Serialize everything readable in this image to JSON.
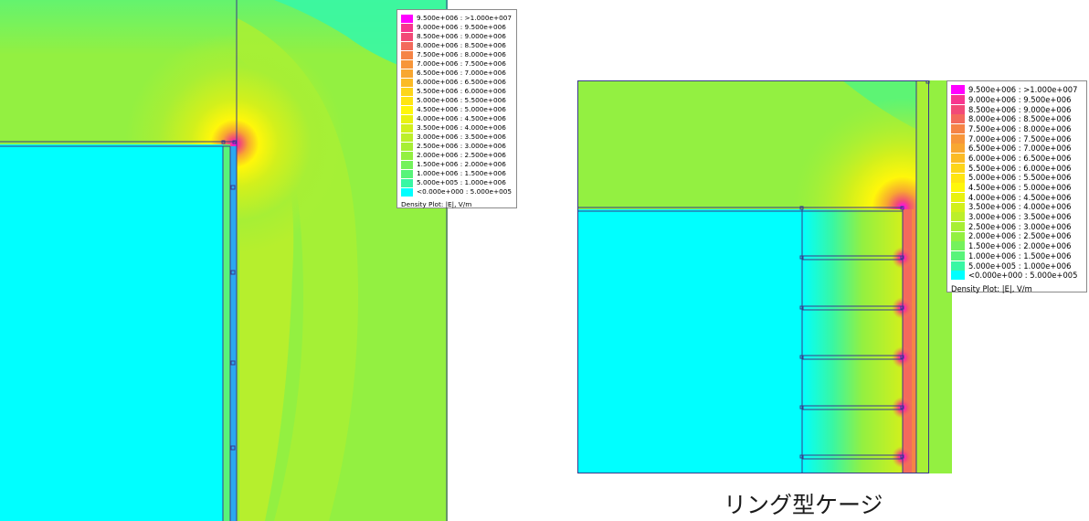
{
  "legend": {
    "entries": [
      {
        "label": "9.500e+006 : >1.000e+007",
        "color": "#ff00ff"
      },
      {
        "label": "9.000e+006 : 9.500e+006",
        "color": "#f7368f"
      },
      {
        "label": "8.500e+006 : 9.000e+006",
        "color": "#f24a77"
      },
      {
        "label": "8.000e+006 : 8.500e+006",
        "color": "#f36a5c"
      },
      {
        "label": "7.500e+006 : 8.000e+006",
        "color": "#f58446"
      },
      {
        "label": "7.000e+006 : 7.500e+006",
        "color": "#f7963a"
      },
      {
        "label": "6.500e+006 : 7.000e+006",
        "color": "#f8a731"
      },
      {
        "label": "6.000e+006 : 6.500e+006",
        "color": "#fbbb26"
      },
      {
        "label": "5.500e+006 : 6.000e+006",
        "color": "#fdd51a"
      },
      {
        "label": "5.000e+006 : 5.500e+006",
        "color": "#ffe512"
      },
      {
        "label": "4.500e+006 : 5.000e+006",
        "color": "#fff70a"
      },
      {
        "label": "4.000e+006 : 4.500e+006",
        "color": "#e9f210"
      },
      {
        "label": "3.500e+006 : 4.000e+006",
        "color": "#d2f01c"
      },
      {
        "label": "3.000e+006 : 3.500e+006",
        "color": "#bcef2a"
      },
      {
        "label": "2.500e+006 : 3.000e+006",
        "color": "#a7ef35"
      },
      {
        "label": "2.000e+006 : 2.500e+006",
        "color": "#93f041"
      },
      {
        "label": "1.500e+006 : 2.000e+006",
        "color": "#74f25c"
      },
      {
        "label": "1.000e+006 : 1.500e+006",
        "color": "#58f47a"
      },
      {
        "label": "5.000e+005 : 1.000e+006",
        "color": "#38f7a4"
      },
      {
        "label": "<0.000e+000 : 5.000e+005",
        "color": "#00ffff"
      }
    ],
    "title": "Density Plot: |E|, V/m"
  },
  "caption": "リング型ケージ",
  "colors": {
    "field_low": "#00ffff",
    "field_mid": "#93f041",
    "outline": "#3a3a8a"
  }
}
